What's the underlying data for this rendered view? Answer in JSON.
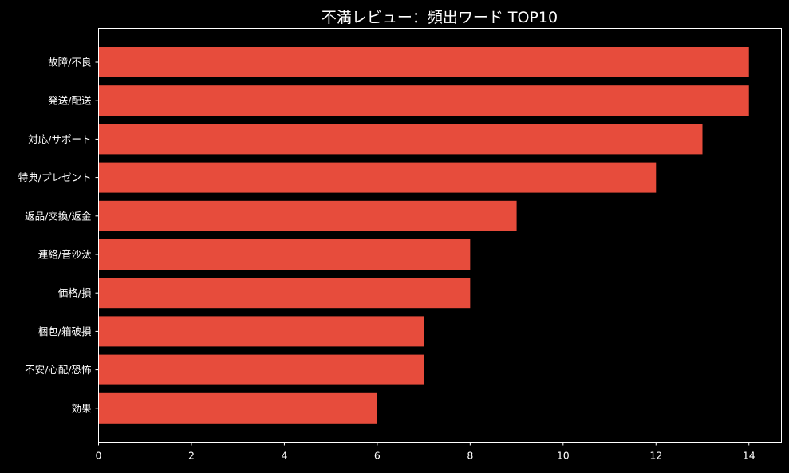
{
  "chart_data": {
    "type": "bar",
    "orientation": "horizontal",
    "title": "不満レビュー：頻出ワード TOP10",
    "xlabel": "",
    "ylabel": "",
    "categories": [
      "故障/不良",
      "発送/配送",
      "対応/サポート",
      "特典/プレゼント",
      "返品/交換/返金",
      "連絡/音沙汰",
      "価格/損",
      "梱包/箱破損",
      "不安/心配/恐怖",
      "効果"
    ],
    "values": [
      14,
      14,
      13,
      12,
      9,
      8,
      8,
      7,
      7,
      6
    ],
    "xlim": [
      0,
      14.7
    ],
    "xticks": [
      0,
      2,
      4,
      6,
      8,
      10,
      12,
      14
    ],
    "grid": false,
    "bar_color": "#e74c3c",
    "background": "#000000",
    "text_color": "#ffffff"
  }
}
